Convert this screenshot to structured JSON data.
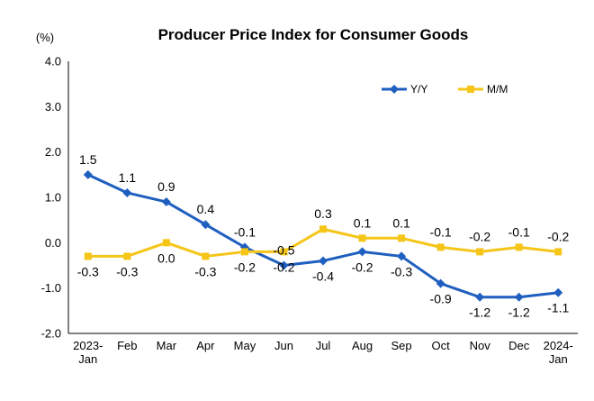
{
  "chart_data": {
    "type": "line",
    "title": "Producer Price Index for Consumer Goods",
    "ylabel": "(%)",
    "xlabel": "",
    "ylim": [
      -2.0,
      4.0
    ],
    "yticks": [
      "4.0",
      "3.0",
      "2.0",
      "1.0",
      "0.0",
      "-1.0",
      "-2.0"
    ],
    "categories": [
      "2023-Jan",
      "Feb",
      "Mar",
      "Apr",
      "May",
      "Jun",
      "Jul",
      "Aug",
      "Sep",
      "Oct",
      "Nov",
      "Dec",
      "2024-Jan"
    ],
    "category_lines": [
      [
        "2023-",
        "Jan"
      ],
      [
        "Feb"
      ],
      [
        "Mar"
      ],
      [
        "Apr"
      ],
      [
        "May"
      ],
      [
        "Jun"
      ],
      [
        "Jul"
      ],
      [
        "Aug"
      ],
      [
        "Sep"
      ],
      [
        "Oct"
      ],
      [
        "Nov"
      ],
      [
        "Dec"
      ],
      [
        "2024-",
        "Jan"
      ]
    ],
    "grid": false,
    "legend_position": "top-right",
    "series": [
      {
        "name": "Y/Y",
        "color": "#1f5fbf",
        "marker": "diamond",
        "values": [
          1.5,
          1.1,
          0.9,
          0.4,
          -0.1,
          -0.5,
          -0.4,
          -0.2,
          -0.3,
          -0.9,
          -1.2,
          -1.2,
          -1.1
        ],
        "labels": [
          "1.5",
          "1.1",
          "0.9",
          "0.4",
          "-0.1",
          "-0.5",
          "-0.4",
          "-0.2",
          "-0.3",
          "-0.9",
          "-1.2",
          "-1.2",
          "-1.1"
        ]
      },
      {
        "name": "M/M",
        "color": "#f5c518",
        "marker": "square",
        "values": [
          -0.3,
          -0.3,
          0.0,
          -0.3,
          -0.2,
          -0.2,
          0.3,
          0.1,
          0.1,
          -0.1,
          -0.2,
          -0.1,
          -0.2
        ],
        "labels": [
          "-0.3",
          "-0.3",
          "0.0",
          "-0.3",
          "-0.2",
          "-0.2",
          "0.3",
          "0.1",
          "0.1",
          "-0.1",
          "-0.2",
          "-0.1",
          "-0.2"
        ]
      }
    ]
  }
}
